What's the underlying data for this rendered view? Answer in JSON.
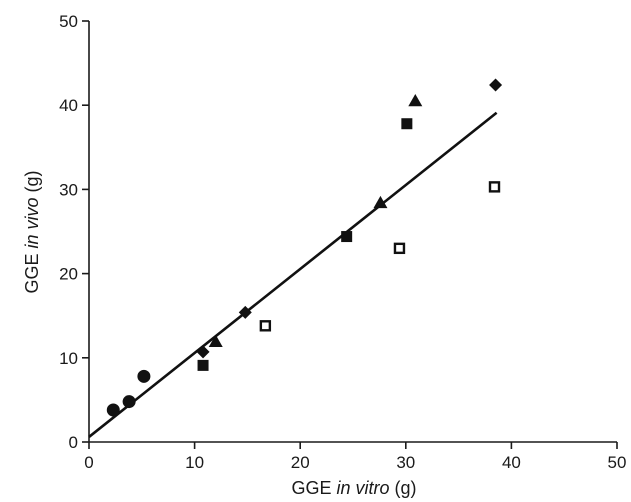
{
  "chart_data": {
    "type": "scatter",
    "title": "",
    "xlabel": {
      "prefix": "GGE ",
      "italic": "in vitro",
      "suffix": " (g)"
    },
    "ylabel": {
      "prefix": "GGE ",
      "italic": "in vivo",
      "suffix": " (g)"
    },
    "xlim": [
      0,
      50
    ],
    "ylim": [
      0,
      50
    ],
    "xticks": [
      0,
      10,
      20,
      30,
      40,
      50
    ],
    "yticks": [
      0,
      10,
      20,
      30,
      40,
      50
    ],
    "grid": false,
    "legend": "none",
    "series": [
      {
        "marker": "filled-circle",
        "color": "#111111",
        "points": [
          [
            2.3,
            3.8
          ],
          [
            3.8,
            4.8
          ],
          [
            5.2,
            7.8
          ]
        ]
      },
      {
        "marker": "filled-diamond",
        "color": "#111111",
        "points": [
          [
            10.8,
            10.7
          ],
          [
            14.8,
            15.4
          ],
          [
            38.5,
            42.4
          ]
        ]
      },
      {
        "marker": "filled-triangle",
        "color": "#111111",
        "points": [
          [
            12.0,
            11.9
          ],
          [
            27.6,
            28.4
          ],
          [
            30.9,
            40.5
          ]
        ]
      },
      {
        "marker": "filled-square",
        "color": "#111111",
        "points": [
          [
            10.8,
            9.1
          ],
          [
            24.4,
            24.4
          ],
          [
            30.1,
            37.8
          ]
        ]
      },
      {
        "marker": "open-square",
        "color": "#111111",
        "points": [
          [
            16.7,
            13.8
          ],
          [
            29.4,
            23.0
          ],
          [
            38.4,
            30.3
          ]
        ]
      }
    ],
    "regression_line": {
      "x": [
        0,
        38.6
      ],
      "y": [
        0.6,
        39.1
      ],
      "color": "#111111"
    }
  }
}
